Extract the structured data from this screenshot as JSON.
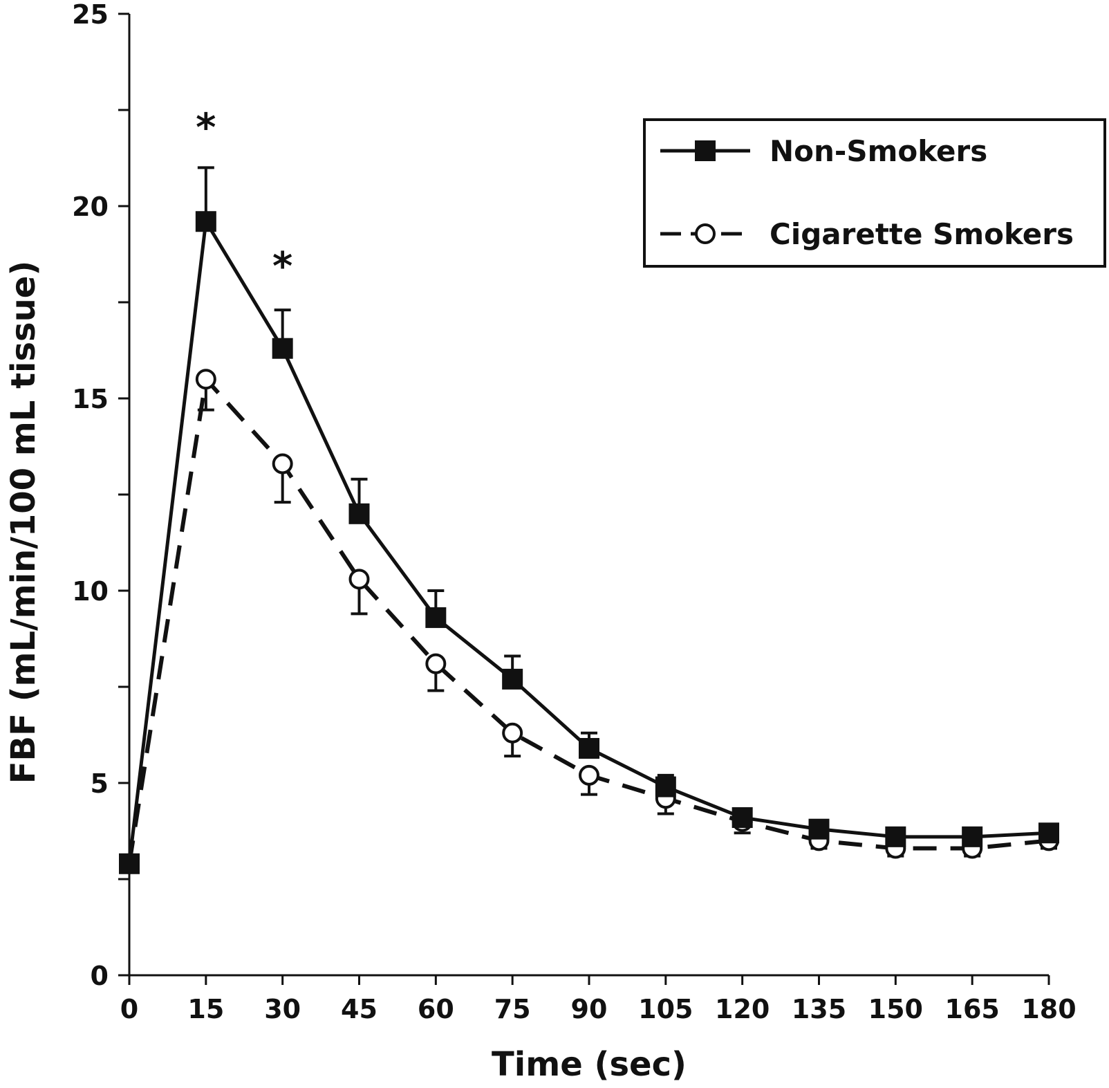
{
  "chart_data": {
    "type": "line",
    "xlabel": "Time (sec)",
    "ylabel": "FBF (mL/min/100 mL tissue)",
    "xlim": [
      0,
      180
    ],
    "ylim": [
      0,
      25
    ],
    "xticks": [
      "0",
      "15",
      "30",
      "45",
      "60",
      "75",
      "90",
      "105",
      "120",
      "135",
      "150",
      "165",
      "180"
    ],
    "yticks": [
      "0",
      "5",
      "10",
      "15",
      "20",
      "25"
    ],
    "grid": false,
    "legend_position": "top-right",
    "x": [
      0,
      15,
      30,
      45,
      60,
      75,
      90,
      105,
      120,
      135,
      150,
      165,
      180
    ],
    "series": [
      {
        "name": "Non-Smokers",
        "marker": "filled-square",
        "line": "solid",
        "values": [
          2.9,
          19.6,
          16.3,
          12.0,
          9.3,
          7.7,
          5.9,
          4.9,
          4.1,
          3.8,
          3.6,
          3.6,
          3.7
        ],
        "error": [
          0,
          1.4,
          1.0,
          0.9,
          0.7,
          0.6,
          0.4,
          0.3,
          0.2,
          0.2,
          0.2,
          0.2,
          0.2
        ]
      },
      {
        "name": "Cigarette Smokers",
        "marker": "open-circle",
        "line": "dashed",
        "values": [
          2.9,
          15.5,
          13.3,
          10.3,
          8.1,
          6.3,
          5.2,
          4.6,
          4.0,
          3.5,
          3.3,
          3.3,
          3.5
        ],
        "error": [
          0,
          0.8,
          1.0,
          0.9,
          0.7,
          0.6,
          0.5,
          0.4,
          0.3,
          0.2,
          0.2,
          0.2,
          0.2
        ]
      }
    ],
    "annotations": [
      {
        "text": "*",
        "x": 15,
        "y": 22.2
      },
      {
        "text": "*",
        "x": 30,
        "y": 18.6
      }
    ],
    "colors": {
      "line": "#111111",
      "background": "#ffffff"
    }
  }
}
